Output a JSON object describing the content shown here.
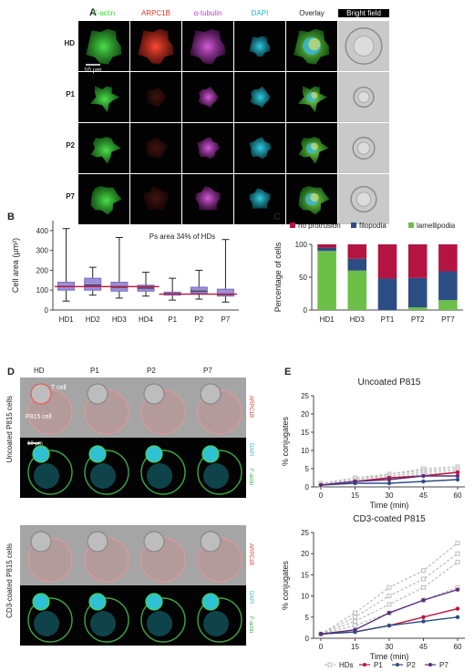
{
  "panels": {
    "A": {
      "letter": "A",
      "channels": [
        {
          "label": "F-actin",
          "color": "#3dd63d"
        },
        {
          "label": "ARPC1B",
          "color": "#e83a2a"
        },
        {
          "label": "α-tubulin",
          "color": "#c046c8"
        },
        {
          "label": "DAPI",
          "color": "#25b8d0"
        },
        {
          "label": "Overlay",
          "color": "#222222"
        },
        {
          "label": "Bright field",
          "color": "#ffffff"
        }
      ],
      "rows": [
        "HD",
        "P1",
        "P2",
        "P7"
      ],
      "scalebar": "10 µm"
    },
    "B": {
      "letter": "B"
    },
    "C": {
      "letter": "C"
    },
    "D": {
      "letter": "D",
      "columns": [
        "HD",
        "P1",
        "P2",
        "P7"
      ],
      "side_labels": {
        "uncoated": "Uncoated P815 cells",
        "coated": "CD3-coated P815 cells"
      },
      "stain_labels": {
        "arpc1b": "ARPC1B",
        "dapi": "DAPI",
        "factin": "F-actin"
      },
      "cell_labels": {
        "tcell": "T cell",
        "p815": "P815 cell"
      },
      "scalebar": "10 µm"
    },
    "E": {
      "letter": "E"
    }
  },
  "chart_data": [
    {
      "id": "B",
      "type": "box",
      "annotation": "Ps area 34% of HDs",
      "ylabel": "Cell area (µm²)",
      "categories": [
        "HD1",
        "HD2",
        "HD3",
        "HD4",
        "P1",
        "P2",
        "P7"
      ],
      "ylim": [
        0,
        450
      ],
      "yticks": [
        0,
        100,
        200,
        300,
        400
      ],
      "boxes": [
        {
          "min": 45,
          "q1": 100,
          "median": 118,
          "q3": 140,
          "max": 410
        },
        {
          "min": 75,
          "q1": 100,
          "median": 125,
          "q3": 160,
          "max": 215
        },
        {
          "min": 60,
          "q1": 95,
          "median": 115,
          "q3": 140,
          "max": 365
        },
        {
          "min": 70,
          "q1": 95,
          "median": 110,
          "q3": 125,
          "max": 190
        },
        {
          "min": 50,
          "q1": 75,
          "median": 82,
          "q3": 90,
          "max": 160
        },
        {
          "min": 55,
          "q1": 85,
          "median": 95,
          "q3": 115,
          "max": 200
        },
        {
          "min": 40,
          "q1": 70,
          "median": 78,
          "q3": 105,
          "max": 355
        }
      ],
      "hd_mean": 118,
      "p_mean": 80,
      "box_color": "#9a8fd6",
      "mean_color": "#c0143c"
    },
    {
      "id": "C",
      "type": "stacked-bar",
      "ylabel": "Percentage of cells",
      "categories": [
        "HD1",
        "HD3",
        "PT1",
        "PT2",
        "PT7"
      ],
      "ylim": [
        0,
        100
      ],
      "yticks": [
        0,
        50,
        100
      ],
      "legend_position": "top",
      "series": [
        {
          "name": "lamellipodia",
          "color": "#6cbf47",
          "values": [
            90,
            60,
            0,
            4,
            15
          ]
        },
        {
          "name": "filopodia",
          "color": "#2c4d83",
          "values": [
            5,
            18,
            48,
            45,
            44
          ]
        },
        {
          "name": "no protrusion",
          "color": "#b31441",
          "values": [
            5,
            22,
            52,
            51,
            41
          ]
        }
      ]
    },
    {
      "id": "E1",
      "type": "line",
      "title": "Uncoated P815",
      "xlabel": "Time (min)",
      "ylabel": "% conjugates",
      "x": [
        0,
        15,
        30,
        45,
        60
      ],
      "ylim": [
        0,
        25
      ],
      "yticks": [
        0,
        5,
        10,
        15,
        20,
        25
      ],
      "hd_series": [
        {
          "values": [
            1,
            2.5,
            3.5,
            5,
            5.5
          ]
        },
        {
          "values": [
            1,
            2,
            3.5,
            4.5,
            5
          ]
        },
        {
          "values": [
            0.5,
            2,
            3,
            4,
            4.5
          ]
        },
        {
          "values": [
            0.5,
            1.5,
            2.5,
            3.5,
            4
          ]
        }
      ],
      "series": [
        {
          "name": "P1",
          "color": "#c0143c",
          "values": [
            0.5,
            1.5,
            2.5,
            3,
            4
          ]
        },
        {
          "name": "P2",
          "color": "#2c4d83",
          "values": [
            0.5,
            1,
            1,
            1.5,
            2
          ]
        },
        {
          "name": "P7",
          "color": "#5b2d7a",
          "values": [
            0.5,
            1.5,
            2,
            3,
            3
          ]
        }
      ]
    },
    {
      "id": "E2",
      "type": "line",
      "title": "CD3-coated P815",
      "xlabel": "Time (min)",
      "ylabel": "% conjugates",
      "x": [
        0,
        15,
        30,
        45,
        60
      ],
      "ylim": [
        0,
        25
      ],
      "yticks": [
        0,
        5,
        10,
        15,
        20,
        25
      ],
      "hd_series": [
        {
          "values": [
            1,
            6,
            12,
            16,
            22.5
          ]
        },
        {
          "values": [
            1,
            5,
            10,
            14,
            20
          ]
        },
        {
          "values": [
            1,
            4,
            8,
            12,
            18
          ]
        },
        {
          "values": [
            1,
            3,
            6,
            9,
            12
          ]
        }
      ],
      "series": [
        {
          "name": "P1",
          "color": "#c0143c",
          "values": [
            1,
            1.5,
            3,
            5,
            7
          ]
        },
        {
          "name": "P2",
          "color": "#2c4d83",
          "values": [
            1,
            1.5,
            3,
            4,
            5
          ]
        },
        {
          "name": "P7",
          "color": "#5b2d7a",
          "values": [
            1,
            2,
            6,
            9,
            11.5
          ]
        }
      ],
      "legend": [
        {
          "name": "HDs",
          "color": "#bdbdbd"
        },
        {
          "name": "P1",
          "color": "#c0143c"
        },
        {
          "name": "P2",
          "color": "#2c4d83"
        },
        {
          "name": "P7",
          "color": "#5b2d7a"
        }
      ]
    }
  ]
}
